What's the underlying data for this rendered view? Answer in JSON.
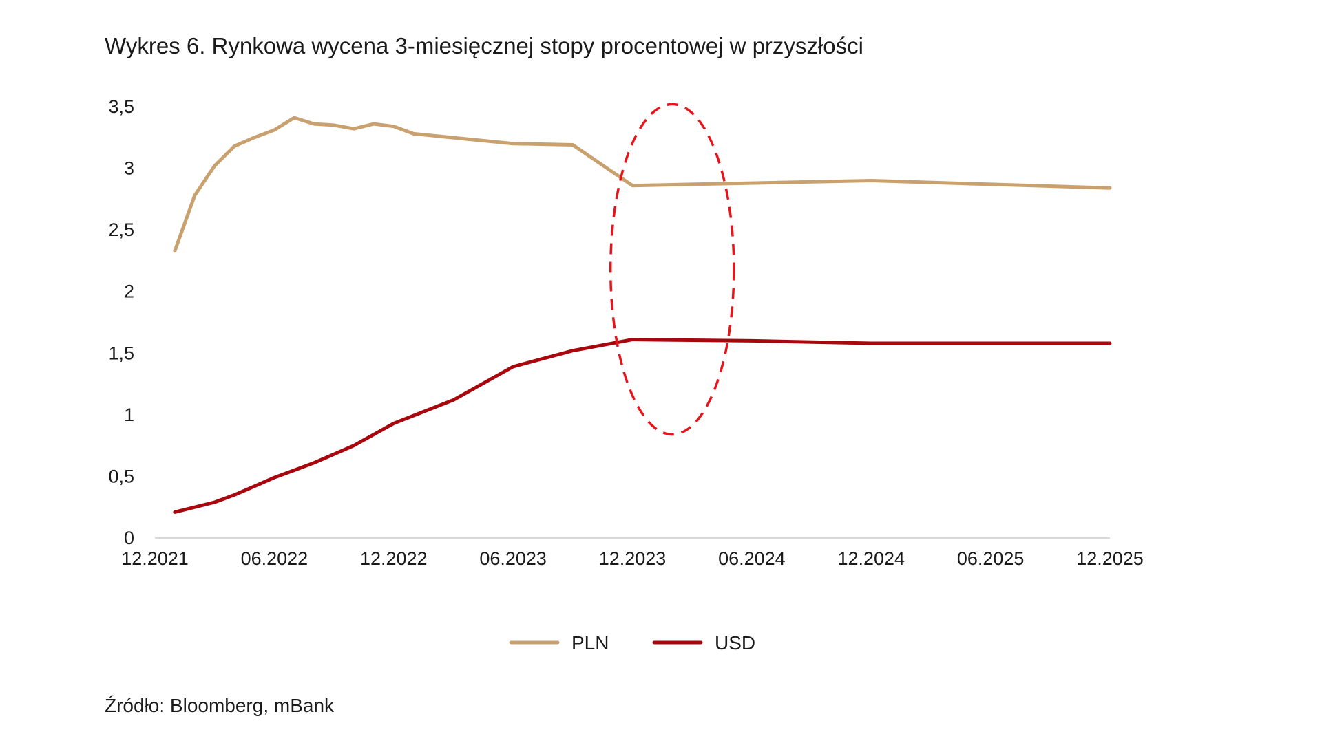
{
  "chart_data": {
    "type": "line",
    "title": "Wykres 6. Rynkowa wycena 3-miesięcznej stopy procentowej w przyszłości",
    "source": "Źródło: Bloomberg, mBank",
    "xlabel": "",
    "ylabel": "",
    "x_ticks": [
      "12.2021",
      "06.2022",
      "12.2022",
      "06.2023",
      "12.2023",
      "06.2024",
      "12.2024",
      "06.2025",
      "12.2025"
    ],
    "xlim": [
      "2021-12",
      "2025-12"
    ],
    "y_ticks": [
      {
        "value": 0,
        "label": "0"
      },
      {
        "value": 0.5,
        "label": "0,5"
      },
      {
        "value": 1,
        "label": "1"
      },
      {
        "value": 1.5,
        "label": "1,5"
      },
      {
        "value": 2,
        "label": "2"
      },
      {
        "value": 2.5,
        "label": "2,5"
      },
      {
        "value": 3,
        "label": "3"
      },
      {
        "value": 3.5,
        "label": "3,5"
      }
    ],
    "ylim": [
      0,
      3.5
    ],
    "grid": false,
    "legend_position": "bottom-center",
    "series": [
      {
        "name": "PLN",
        "color": "#c9a16e",
        "points": [
          {
            "x": "2022-01",
            "y": 2.33
          },
          {
            "x": "2022-02",
            "y": 2.78
          },
          {
            "x": "2022-03",
            "y": 3.02
          },
          {
            "x": "2022-04",
            "y": 3.18
          },
          {
            "x": "2022-05",
            "y": 3.25
          },
          {
            "x": "2022-06",
            "y": 3.31
          },
          {
            "x": "2022-07",
            "y": 3.41
          },
          {
            "x": "2022-08",
            "y": 3.36
          },
          {
            "x": "2022-09",
            "y": 3.35
          },
          {
            "x": "2022-10",
            "y": 3.32
          },
          {
            "x": "2022-11",
            "y": 3.36
          },
          {
            "x": "2022-12",
            "y": 3.34
          },
          {
            "x": "2023-01",
            "y": 3.28
          },
          {
            "x": "2023-06",
            "y": 3.2
          },
          {
            "x": "2023-09",
            "y": 3.19
          },
          {
            "x": "2023-12",
            "y": 2.86
          },
          {
            "x": "2024-06",
            "y": 2.88
          },
          {
            "x": "2024-12",
            "y": 2.9
          },
          {
            "x": "2025-12",
            "y": 2.84
          }
        ]
      },
      {
        "name": "USD",
        "color": "#a8070e",
        "points": [
          {
            "x": "2022-01",
            "y": 0.21
          },
          {
            "x": "2022-02",
            "y": 0.25
          },
          {
            "x": "2022-03",
            "y": 0.29
          },
          {
            "x": "2022-04",
            "y": 0.35
          },
          {
            "x": "2022-05",
            "y": 0.42
          },
          {
            "x": "2022-06",
            "y": 0.49
          },
          {
            "x": "2022-07",
            "y": 0.55
          },
          {
            "x": "2022-08",
            "y": 0.61
          },
          {
            "x": "2022-09",
            "y": 0.68
          },
          {
            "x": "2022-10",
            "y": 0.75
          },
          {
            "x": "2022-11",
            "y": 0.84
          },
          {
            "x": "2022-12",
            "y": 0.93
          },
          {
            "x": "2023-03",
            "y": 1.12
          },
          {
            "x": "2023-06",
            "y": 1.39
          },
          {
            "x": "2023-09",
            "y": 1.52
          },
          {
            "x": "2023-12",
            "y": 1.61
          },
          {
            "x": "2024-06",
            "y": 1.6
          },
          {
            "x": "2024-12",
            "y": 1.58
          },
          {
            "x": "2025-12",
            "y": 1.58
          }
        ]
      }
    ],
    "annotations": [
      {
        "type": "ellipse",
        "style": "dashed",
        "color": "#e8141b",
        "center": {
          "x": "2024-02",
          "y": 2.18
        },
        "radius_x_months": 3.1,
        "radius_y": 1.34
      }
    ]
  }
}
